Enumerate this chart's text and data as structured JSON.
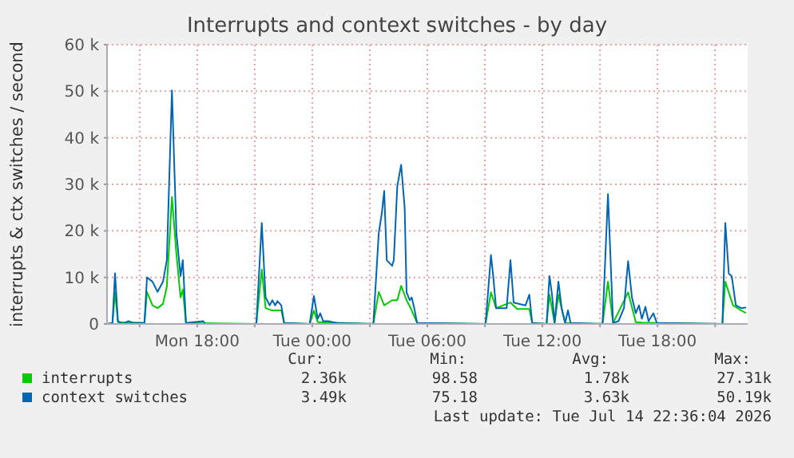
{
  "chart_data": {
    "type": "line",
    "title": "Interrupts and context switches - by day",
    "ylabel": "interrupts & ctx switches / second",
    "xlim": [
      "2026-07-13T13:18",
      "2026-07-14T22:42"
    ],
    "xticks": [
      {
        "value": "2026-07-13T15:00",
        "label": null
      },
      {
        "value": "2026-07-13T18:00",
        "label": "Mon 18:00"
      },
      {
        "value": "2026-07-13T21:00",
        "label": null
      },
      {
        "value": "2026-07-14T00:00",
        "label": "Tue 00:00"
      },
      {
        "value": "2026-07-14T03:00",
        "label": null
      },
      {
        "value": "2026-07-14T06:00",
        "label": "Tue 06:00"
      },
      {
        "value": "2026-07-14T09:00",
        "label": null
      },
      {
        "value": "2026-07-14T12:00",
        "label": "Tue 12:00"
      },
      {
        "value": "2026-07-14T15:00",
        "label": null
      },
      {
        "value": "2026-07-14T18:00",
        "label": "Tue 18:00"
      },
      {
        "value": "2026-07-14T21:00",
        "label": null
      }
    ],
    "ylim": [
      0,
      60
    ],
    "yticks": [
      0,
      {
        "value": 10,
        "label": "10 k"
      },
      {
        "value": 20,
        "label": "20 k"
      },
      {
        "value": 30,
        "label": "30 k"
      },
      {
        "value": 40,
        "label": "40 k"
      },
      {
        "value": 50,
        "label": "50 k"
      },
      {
        "value": 60,
        "label": "60 k"
      }
    ],
    "grid": true,
    "legend": "bottom",
    "series": [
      {
        "name": "interrupts",
        "color": "#00cc00",
        "x": [
          "2026-07-13T13:19",
          "2026-07-13T13:35",
          "2026-07-13T13:43",
          "2026-07-13T13:52",
          "2026-07-13T15:15",
          "2026-07-13T15:23",
          "2026-07-13T15:40",
          "2026-07-13T15:56",
          "2026-07-13T16:13",
          "2026-07-13T16:25",
          "2026-07-13T16:41",
          "2026-07-13T16:55",
          "2026-07-13T17:08",
          "2026-07-13T17:15",
          "2026-07-13T17:25",
          "2026-07-13T21:05",
          "2026-07-13T21:22",
          "2026-07-13T21:34",
          "2026-07-13T21:55",
          "2026-07-13T22:23",
          "2026-07-13T22:32",
          "2026-07-13T23:52",
          "2026-07-14T00:05",
          "2026-07-14T00:17",
          "2026-07-14T03:11",
          "2026-07-14T03:28",
          "2026-07-14T03:45",
          "2026-07-14T04:10",
          "2026-07-14T04:26",
          "2026-07-14T04:38",
          "2026-07-14T04:55",
          "2026-07-14T05:08",
          "2026-07-14T05:28",
          "2026-07-14T09:02",
          "2026-07-14T09:19",
          "2026-07-14T09:35",
          "2026-07-14T10:20",
          "2026-07-14T10:41",
          "2026-07-14T11:19",
          "2026-07-14T11:28",
          "2026-07-14T12:13",
          "2026-07-14T12:22",
          "2026-07-14T12:38",
          "2026-07-14T12:50",
          "2026-07-14T13:11",
          "2026-07-14T15:08",
          "2026-07-14T15:25",
          "2026-07-14T15:41",
          "2026-07-14T16:28",
          "2026-07-14T16:52",
          "2026-07-14T17:11",
          "2026-07-14T17:58",
          "2026-07-14T21:23",
          "2026-07-14T21:32",
          "2026-07-14T21:56",
          "2026-07-14T22:22",
          "2026-07-14T22:35"
        ],
        "values": [
          0,
          0.2,
          6.9,
          0.4,
          0.2,
          6.9,
          4.0,
          3.4,
          4.3,
          8.0,
          27.3,
          15.0,
          5.7,
          7.4,
          0.2,
          0,
          11.7,
          3.4,
          2.9,
          2.9,
          0.2,
          0,
          2.9,
          0.4,
          0,
          6.9,
          4.0,
          5.1,
          5.1,
          8.2,
          5.1,
          3.4,
          0.2,
          0,
          6.8,
          3.4,
          4.6,
          3.2,
          3.2,
          0.2,
          0,
          6.3,
          0.2,
          6.3,
          0.2,
          0,
          9.1,
          0.2,
          6.8,
          0.4,
          0.3,
          0.2,
          0,
          9.1,
          4.0,
          2.9,
          2.4
        ]
      },
      {
        "name": "context switches",
        "color": "#0066b3",
        "x": [
          "2026-07-13T13:19",
          "2026-07-13T13:35",
          "2026-07-13T13:43",
          "2026-07-13T13:52",
          "2026-07-13T14:08",
          "2026-07-13T14:25",
          "2026-07-13T14:41",
          "2026-07-13T15:15",
          "2026-07-13T15:23",
          "2026-07-13T15:40",
          "2026-07-13T15:56",
          "2026-07-13T16:13",
          "2026-07-13T16:25",
          "2026-07-13T16:41",
          "2026-07-13T16:55",
          "2026-07-13T17:08",
          "2026-07-13T17:15",
          "2026-07-13T17:25",
          "2026-07-13T18:19",
          "2026-07-13T18:26",
          "2026-07-13T21:05",
          "2026-07-13T21:22",
          "2026-07-13T21:34",
          "2026-07-13T21:47",
          "2026-07-13T21:55",
          "2026-07-13T22:04",
          "2026-07-13T22:11",
          "2026-07-13T22:23",
          "2026-07-13T22:32",
          "2026-07-13T23:52",
          "2026-07-14T00:05",
          "2026-07-14T00:17",
          "2026-07-14T00:25",
          "2026-07-14T00:34",
          "2026-07-14T00:50",
          "2026-07-14T01:15",
          "2026-07-14T03:11",
          "2026-07-14T03:28",
          "2026-07-14T03:38",
          "2026-07-14T03:45",
          "2026-07-14T03:53",
          "2026-07-14T04:10",
          "2026-07-14T04:15",
          "2026-07-14T04:26",
          "2026-07-14T04:38",
          "2026-07-14T04:49",
          "2026-07-14T04:55",
          "2026-07-14T05:05",
          "2026-07-14T05:11",
          "2026-07-14T05:19",
          "2026-07-14T05:28",
          "2026-07-14T09:02",
          "2026-07-14T09:19",
          "2026-07-14T09:26",
          "2026-07-14T09:35",
          "2026-07-14T10:08",
          "2026-07-14T10:20",
          "2026-07-14T10:30",
          "2026-07-14T11:07",
          "2026-07-14T11:19",
          "2026-07-14T11:28",
          "2026-07-14T12:13",
          "2026-07-14T12:22",
          "2026-07-14T12:30",
          "2026-07-14T12:38",
          "2026-07-14T12:50",
          "2026-07-14T13:00",
          "2026-07-14T13:11",
          "2026-07-14T13:20",
          "2026-07-14T13:28",
          "2026-07-14T15:08",
          "2026-07-14T15:25",
          "2026-07-14T15:41",
          "2026-07-14T15:58",
          "2026-07-14T16:15",
          "2026-07-14T16:28",
          "2026-07-14T16:40",
          "2026-07-14T16:52",
          "2026-07-14T17:02",
          "2026-07-14T17:11",
          "2026-07-14T17:22",
          "2026-07-14T17:32",
          "2026-07-14T17:47",
          "2026-07-14T17:58",
          "2026-07-14T21:23",
          "2026-07-14T21:32",
          "2026-07-14T21:43",
          "2026-07-14T21:52",
          "2026-07-14T22:05",
          "2026-07-14T22:22",
          "2026-07-14T22:35"
        ],
        "values": [
          0,
          0.2,
          10.9,
          0.6,
          0,
          0.6,
          0.2,
          0.2,
          10.0,
          9.1,
          6.9,
          9.1,
          13.7,
          50.2,
          19.5,
          10.3,
          13.7,
          0.2,
          0.6,
          0,
          0,
          21.7,
          5.7,
          4.0,
          5.1,
          4.0,
          4.9,
          4.0,
          0.2,
          0,
          6.0,
          1.1,
          2.3,
          0.6,
          0.6,
          0.2,
          0,
          19.5,
          24.0,
          28.6,
          13.7,
          12.5,
          13.7,
          29.6,
          34.2,
          25.0,
          6.8,
          5.1,
          5.7,
          3.4,
          0.2,
          0,
          14.8,
          10.3,
          3.4,
          3.4,
          13.7,
          4.6,
          4.0,
          6.3,
          0.2,
          0,
          10.3,
          6.3,
          0.2,
          9.1,
          3.4,
          0.2,
          2.9,
          0.2,
          0,
          27.9,
          0.2,
          0.6,
          3.4,
          13.5,
          5.7,
          2.3,
          4.0,
          1.1,
          3.7,
          0.6,
          2.3,
          0.2,
          0,
          21.7,
          10.8,
          10.3,
          4.0,
          3.4,
          3.5
        ]
      }
    ],
    "annotations": [
      "Cur:",
      "Min:",
      "Avg:",
      "Max:",
      "2.36k",
      "98.58",
      "1.78k",
      "27.31k",
      "3.49k",
      "75.18",
      "3.63k",
      "50.19k",
      "Last update: Tue Jul 14 22:36:04 2026"
    ]
  }
}
